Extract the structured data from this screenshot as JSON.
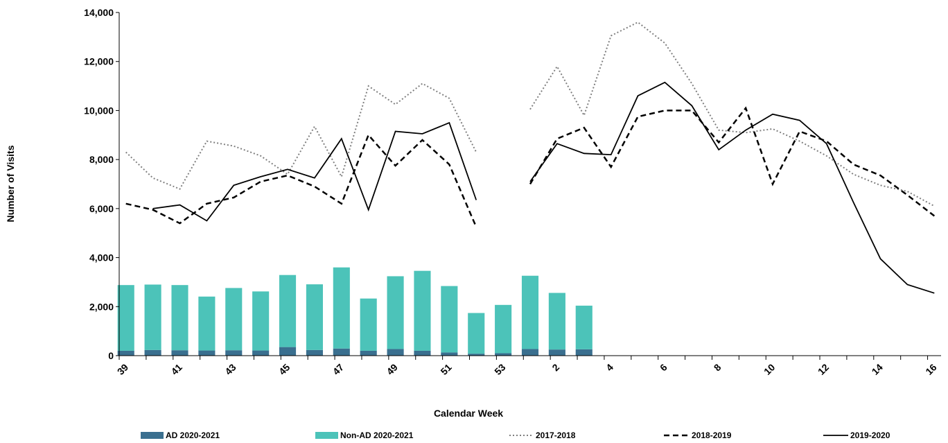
{
  "chart_data": {
    "type": "bar",
    "title": "",
    "xlabel": "Calendar Week",
    "ylabel": "Number of Visits",
    "ylim": [
      0,
      14000
    ],
    "yticks": [
      0,
      2000,
      4000,
      6000,
      8000,
      10000,
      12000,
      14000
    ],
    "ytick_labels": [
      "0",
      "2,000",
      "4,000",
      "6,000",
      "8,000",
      "10,000",
      "12,000",
      "14,000"
    ],
    "categories": [
      "39",
      "40",
      "41",
      "42",
      "43",
      "44",
      "45",
      "46",
      "47",
      "48",
      "49",
      "50",
      "51",
      "52",
      "53",
      "1",
      "2",
      "3",
      "4",
      "5",
      "6",
      "7",
      "8",
      "9",
      "10",
      "11",
      "12",
      "13",
      "14",
      "15",
      "16"
    ],
    "xtick_labels": [
      "39",
      "41",
      "43",
      "45",
      "47",
      "49",
      "51",
      "53",
      "2",
      "4",
      "6",
      "8",
      "10",
      "12",
      "14",
      "16"
    ],
    "xtick_categories": [
      "39",
      "41",
      "43",
      "45",
      "47",
      "49",
      "51",
      "53",
      "2",
      "4",
      "6",
      "8",
      "10",
      "12",
      "14",
      "16"
    ],
    "grid": false,
    "legend_position": "bottom",
    "bar_series": [
      {
        "name": "AD 2020-2021",
        "color": "#3a6f8f",
        "values": [
          200,
          230,
          220,
          210,
          220,
          210,
          350,
          230,
          290,
          200,
          270,
          200,
          130,
          80,
          100,
          270,
          250,
          260,
          null,
          null,
          null,
          null,
          null,
          null,
          null,
          null,
          null,
          null,
          null,
          null,
          null
        ]
      },
      {
        "name": "Non-AD 2020-2021",
        "color": "#4cc3b9",
        "values": [
          2680,
          2670,
          2660,
          2200,
          2540,
          2410,
          2940,
          2680,
          3310,
          2130,
          2970,
          3260,
          2710,
          1660,
          1970,
          2990,
          2310,
          1780,
          null,
          null,
          null,
          null,
          null,
          null,
          null,
          null,
          null,
          null,
          null,
          null,
          null
        ]
      }
    ],
    "line_series": [
      {
        "name": "2017-2018",
        "style": "dotted",
        "color": "#7f7f7f",
        "values": [
          8300,
          7250,
          6800,
          8750,
          8550,
          8150,
          7400,
          9350,
          7300,
          11000,
          10250,
          11100,
          10500,
          8300,
          null,
          10050,
          11800,
          9800,
          13050,
          13600,
          12750,
          11100,
          9200,
          9100,
          9250,
          8750,
          8150,
          7400,
          6950,
          6700,
          6100
        ]
      },
      {
        "name": "2018-2019",
        "style": "dashed",
        "color": "#000000",
        "values": [
          6200,
          5950,
          5400,
          6200,
          6450,
          7100,
          7350,
          6900,
          6200,
          9000,
          7750,
          8800,
          7800,
          5250,
          null,
          7000,
          8850,
          9300,
          7700,
          9750,
          10000,
          10000,
          8700,
          10100,
          7000,
          9150,
          8750,
          7800,
          7350,
          6550,
          5700
        ]
      },
      {
        "name": "2019-2020",
        "style": "solid",
        "color": "#000000",
        "values": [
          null,
          6000,
          6150,
          5500,
          6950,
          7300,
          7600,
          7250,
          8850,
          5950,
          9150,
          9050,
          9500,
          6350,
          null,
          7100,
          8650,
          8250,
          8200,
          10600,
          11150,
          10200,
          8400,
          9200,
          9850,
          9600,
          8650,
          6250,
          3950,
          2900,
          2550
        ]
      }
    ]
  }
}
